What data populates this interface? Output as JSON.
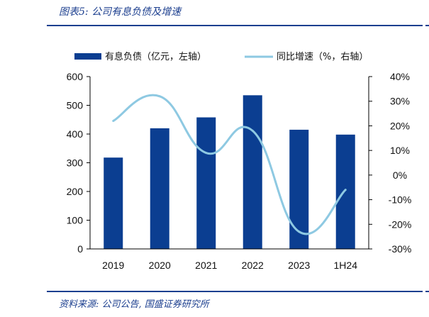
{
  "header": {
    "title": "图表5:  公司有息负债及增速"
  },
  "footer": {
    "source": "资料来源:  公司公告,  国盛证券研究所"
  },
  "colors": {
    "bar": "#0b3e91",
    "line": "#8ec9e2",
    "rule": "#1c3f8f",
    "axis": "#000000"
  },
  "chart_data": {
    "type": "bar",
    "categories": [
      "2019",
      "2020",
      "2021",
      "2022",
      "2023",
      "1H24"
    ],
    "series": [
      {
        "name": "有息负债（亿元，左轴）",
        "type": "bar",
        "axis": "left",
        "values": [
          318,
          420,
          458,
          535,
          415,
          398
        ]
      },
      {
        "name": "同比增速（%，右轴）",
        "type": "line",
        "axis": "right",
        "values": [
          22,
          32,
          9,
          18,
          -23,
          -6
        ]
      }
    ],
    "y_left": {
      "ylim": [
        0,
        600
      ],
      "ticks": [
        0,
        100,
        200,
        300,
        400,
        500,
        600
      ],
      "tick_labels": [
        "0",
        "100",
        "200",
        "300",
        "400",
        "500",
        "600"
      ]
    },
    "y_right": {
      "ylim": [
        -30,
        40
      ],
      "ticks": [
        -30,
        -20,
        -10,
        0,
        10,
        20,
        30,
        40
      ],
      "tick_labels": [
        "-30%",
        "-20%",
        "-10%",
        "0%",
        "10%",
        "20%",
        "30%",
        "40%"
      ]
    },
    "legend": "top",
    "grid": false
  }
}
